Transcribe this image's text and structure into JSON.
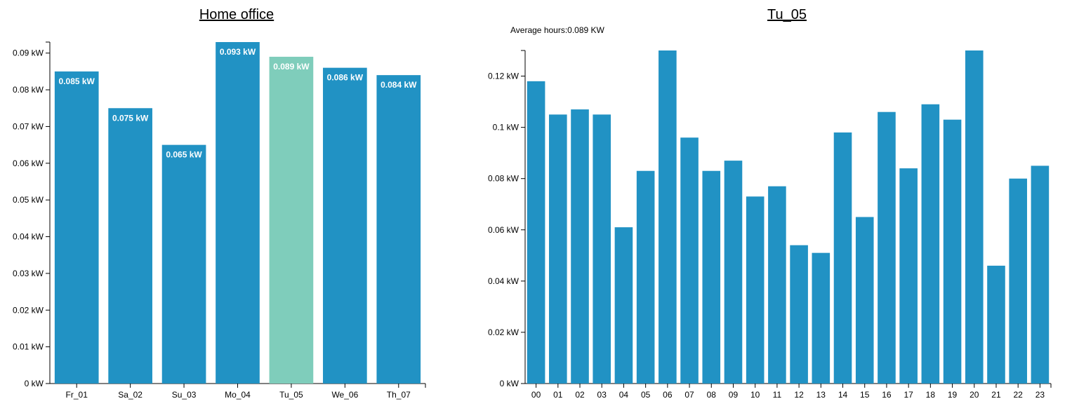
{
  "average_label": "Average hours:0.089 KW",
  "chart_data": [
    {
      "type": "bar",
      "title": "Home office",
      "categories": [
        "Fr_01",
        "Sa_02",
        "Su_03",
        "Mo_04",
        "Tu_05",
        "We_06",
        "Th_07"
      ],
      "values": [
        0.085,
        0.075,
        0.065,
        0.093,
        0.089,
        0.086,
        0.084
      ],
      "data_labels": [
        "0.085 kW",
        "0.075 kW",
        "0.065 kW",
        "0.093 kW",
        "0.089 kW",
        "0.086 kW",
        "0.084 kW"
      ],
      "highlighted_category": "Tu_05",
      "bar_color": "#2192c4",
      "highlight_color": "#7fcdbb",
      "yticks": [
        0,
        0.01,
        0.02,
        0.03,
        0.04,
        0.05,
        0.06,
        0.07,
        0.08,
        0.09
      ],
      "ytick_labels": [
        "0 kW",
        "0.01 kW",
        "0.02 kW",
        "0.03 kW",
        "0.04 kW",
        "0.05 kW",
        "0.06 kW",
        "0.07 kW",
        "0.08 kW",
        "0.09 kW"
      ],
      "ylim": [
        0,
        0.093
      ],
      "grid": false
    },
    {
      "type": "bar",
      "title": "Tu_05",
      "categories": [
        "00",
        "01",
        "02",
        "03",
        "04",
        "05",
        "06",
        "07",
        "08",
        "09",
        "10",
        "11",
        "12",
        "13",
        "14",
        "15",
        "16",
        "17",
        "18",
        "19",
        "20",
        "21",
        "22",
        "23"
      ],
      "values": [
        0.118,
        0.105,
        0.107,
        0.105,
        0.061,
        0.083,
        0.13,
        0.096,
        0.083,
        0.087,
        0.073,
        0.077,
        0.054,
        0.051,
        0.098,
        0.065,
        0.106,
        0.084,
        0.109,
        0.103,
        0.13,
        0.046,
        0.08,
        0.085
      ],
      "bar_color": "#2192c4",
      "yticks": [
        0,
        0.02,
        0.04,
        0.06,
        0.08,
        0.1,
        0.12
      ],
      "ytick_labels": [
        "0 kW",
        "0.02 kW",
        "0.04 kW",
        "0.06 kW",
        "0.08 kW",
        "0.1 kW",
        "0.12 kW"
      ],
      "ylim": [
        0,
        0.13
      ],
      "grid": false
    }
  ]
}
